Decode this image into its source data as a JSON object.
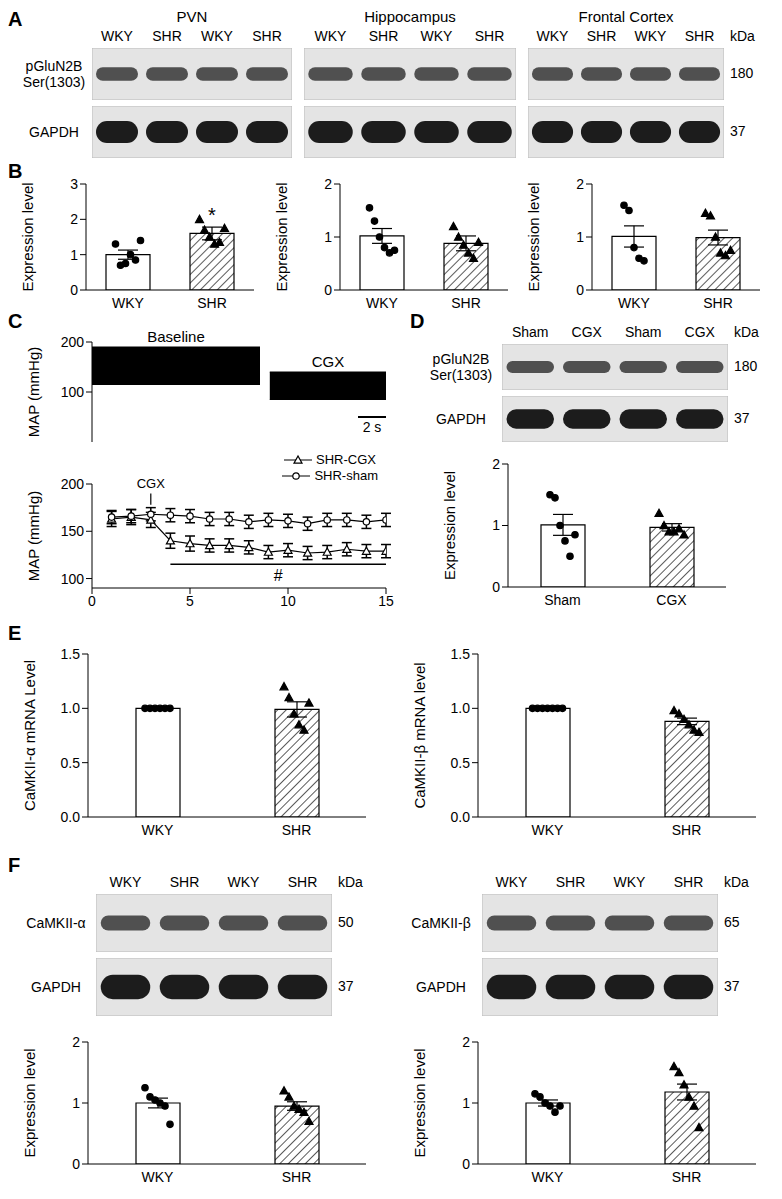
{
  "panel_labels": [
    "A",
    "B",
    "C",
    "D",
    "E",
    "F"
  ],
  "blot_groups": [
    {
      "row_labels": [
        [
          "pGluN2B",
          "Ser(1303)"
        ],
        [
          "GAPDH"
        ]
      ],
      "kda_header": "kDa",
      "kda": [
        180,
        37
      ],
      "blots": [
        {
          "title": "PVN",
          "lanes": [
            "WKY",
            "SHR",
            "WKY",
            "SHR"
          ]
        },
        {
          "title": "Hippocampus",
          "lanes": [
            "WKY",
            "SHR",
            "WKY",
            "SHR"
          ]
        },
        {
          "title": "Frontal Cortex",
          "lanes": [
            "WKY",
            "SHR",
            "WKY",
            "SHR"
          ]
        }
      ]
    },
    {
      "row_labels": [
        [
          "pGluN2B",
          "Ser(1303)"
        ],
        [
          "GAPDH"
        ]
      ],
      "kda_header": "kDa",
      "kda": [
        180,
        37
      ],
      "blots": [
        {
          "lanes": [
            "Sham",
            "CGX",
            "Sham",
            "CGX"
          ]
        }
      ]
    },
    {
      "row_labels": [
        [
          "CaMKII-α"
        ],
        [
          "GAPDH"
        ]
      ],
      "kda_header": "kDa",
      "kda": [
        50,
        37
      ],
      "blots": [
        {
          "lanes": [
            "WKY",
            "SHR",
            "WKY",
            "SHR"
          ]
        }
      ]
    },
    {
      "row_labels": [
        [
          "CaMKII-β"
        ],
        [
          "GAPDH"
        ]
      ],
      "kda_header": "kDa",
      "kda": [
        65,
        37
      ],
      "blots": [
        {
          "lanes": [
            "WKY",
            "SHR",
            "WKY",
            "SHR"
          ]
        }
      ]
    }
  ],
  "chart_data": [
    {
      "type": "bar",
      "y_label": "Expression level",
      "categories": [
        "WKY",
        "SHR"
      ],
      "values": [
        1.0,
        1.6
      ],
      "errors": [
        0.13,
        0.18
      ],
      "colors": [
        "#ffffff",
        "#ffffff"
      ],
      "ylim": [
        0,
        3
      ],
      "yticks": [
        0,
        1,
        2,
        3
      ],
      "points": [
        {
          "category": "WKY",
          "marker": "circle",
          "values": [
            1.3,
            0.7,
            0.75,
            1.0,
            0.85,
            1.4
          ]
        },
        {
          "category": "SHR",
          "marker": "triangle",
          "values": [
            2.0,
            1.7,
            1.5,
            1.3,
            1.35,
            1.75
          ]
        }
      ],
      "annotations": [
        {
          "category": "SHR",
          "text": "*"
        }
      ]
    },
    {
      "type": "bar",
      "y_label": "Expression level",
      "categories": [
        "WKY",
        "SHR"
      ],
      "values": [
        1.02,
        0.88
      ],
      "errors": [
        0.14,
        0.14
      ],
      "colors": [
        "#ffffff",
        "#ffffff"
      ],
      "ylim": [
        0,
        2
      ],
      "yticks": [
        0,
        1,
        2
      ],
      "points": [
        {
          "category": "WKY",
          "marker": "circle",
          "values": [
            1.55,
            1.3,
            1.0,
            0.8,
            0.7,
            0.75
          ]
        },
        {
          "category": "SHR",
          "marker": "triangle",
          "values": [
            1.2,
            1.0,
            0.85,
            0.7,
            0.6,
            0.9
          ]
        }
      ]
    },
    {
      "type": "bar",
      "y_label": "Expression level",
      "categories": [
        "WKY",
        "SHR"
      ],
      "values": [
        1.01,
        0.99
      ],
      "errors": [
        0.2,
        0.14
      ],
      "colors": [
        "#ffffff",
        "#ffffff"
      ],
      "ylim": [
        0,
        2
      ],
      "yticks": [
        0,
        1,
        2
      ],
      "points": [
        {
          "category": "WKY",
          "marker": "circle",
          "values": [
            1.6,
            1.5,
            0.8,
            0.6,
            0.55
          ]
        },
        {
          "category": "SHR",
          "marker": "triangle",
          "values": [
            1.45,
            1.4,
            1.0,
            0.7,
            0.65,
            0.75
          ]
        }
      ]
    },
    {
      "type": "area",
      "y_label": "MAP (mmHg)",
      "xlim": [
        0,
        21
      ],
      "ylim": [
        0,
        200
      ],
      "yticks": [
        0,
        100,
        200
      ],
      "tick_labels": "y",
      "series": [
        {
          "name": "Baseline",
          "x": [
            0,
            12
          ],
          "low": [
            115,
            115
          ],
          "high": [
            190,
            190
          ]
        },
        {
          "name": "CGX",
          "x": [
            12.7,
            21
          ],
          "low": [
            85,
            85
          ],
          "high": [
            140,
            140
          ]
        }
      ],
      "scale_bar": {
        "value": 2,
        "label": "2 s"
      }
    },
    {
      "type": "line",
      "y_label": "MAP (mmHg)",
      "x": [
        1,
        2,
        3,
        4,
        5,
        6,
        7,
        8,
        9,
        10,
        11,
        12,
        13,
        14,
        15
      ],
      "xlim": [
        0,
        15
      ],
      "xticks": [
        0,
        5,
        10,
        15
      ],
      "ylim": [
        90,
        200
      ],
      "yticks": [
        100,
        150,
        200
      ],
      "legend": "top-right",
      "series": [
        {
          "name": "SHR-CGX",
          "marker": "triangle",
          "values": [
            163,
            165,
            162,
            140,
            137,
            135,
            135,
            133,
            128,
            130,
            127,
            128,
            131,
            129,
            129
          ],
          "errors": [
            8,
            8,
            8,
            8,
            8,
            7,
            7,
            7,
            7,
            7,
            7,
            7,
            7,
            7,
            7
          ]
        },
        {
          "name": "SHR-sham",
          "marker": "circle",
          "values": [
            165,
            166,
            168,
            167,
            166,
            163,
            163,
            160,
            162,
            161,
            158,
            162,
            162,
            160,
            162
          ],
          "errors": [
            7,
            7,
            7,
            7,
            7,
            7,
            7,
            7,
            7,
            7,
            7,
            7,
            7,
            7,
            7
          ]
        }
      ],
      "annotations": [
        {
          "text": "CGX",
          "x": 3
        },
        {
          "text": "#",
          "x_range": [
            4,
            15
          ]
        }
      ]
    },
    {
      "type": "bar",
      "y_label": "Expression level",
      "categories": [
        "Sham",
        "CGX"
      ],
      "values": [
        1.01,
        0.97
      ],
      "errors": [
        0.17,
        0.06
      ],
      "colors": [
        "#ffffff",
        "#ffffff"
      ],
      "ylim": [
        0,
        2
      ],
      "yticks": [
        0,
        1,
        2
      ],
      "points": [
        {
          "category": "Sham",
          "marker": "circle",
          "values": [
            1.5,
            1.45,
            1.0,
            0.75,
            0.5,
            0.85
          ]
        },
        {
          "category": "CGX",
          "marker": "triangle",
          "values": [
            1.2,
            1.0,
            0.9,
            0.9,
            0.95,
            0.85
          ]
        }
      ]
    },
    {
      "type": "bar",
      "y_label": "CaMKII-α mRNA Level",
      "categories": [
        "WKY",
        "SHR"
      ],
      "values": [
        1.0,
        0.99
      ],
      "errors": [
        0,
        0.07
      ],
      "colors": [
        "#ffffff",
        "#ffffff"
      ],
      "ylim": [
        0,
        1.5
      ],
      "yticks": [
        {
          "value": 0,
          "label": "0.0"
        },
        {
          "value": 0.5,
          "label": "0.5"
        },
        {
          "value": 1,
          "label": "1.0"
        },
        {
          "value": 1.5,
          "label": "1.5"
        }
      ],
      "points": [
        {
          "category": "WKY",
          "marker": "circle",
          "values": [
            1,
            1,
            1,
            1,
            1,
            1
          ]
        },
        {
          "category": "SHR",
          "marker": "triangle",
          "values": [
            1.2,
            1.1,
            0.95,
            0.85,
            0.8,
            1.05
          ]
        }
      ]
    },
    {
      "type": "bar",
      "y_label": "CaMKII-β mRNA level",
      "categories": [
        "WKY",
        "SHR"
      ],
      "values": [
        1.0,
        0.88
      ],
      "errors": [
        0,
        0.03
      ],
      "colors": [
        "#ffffff",
        "#ffffff"
      ],
      "ylim": [
        0,
        1.5
      ],
      "yticks": [
        {
          "value": 0,
          "label": "0.0"
        },
        {
          "value": 0.5,
          "label": "0.5"
        },
        {
          "value": 1,
          "label": "1.0"
        },
        {
          "value": 1.5,
          "label": "1.5"
        }
      ],
      "points": [
        {
          "category": "WKY",
          "marker": "circle",
          "values": [
            1,
            1,
            1,
            1,
            1,
            1,
            1
          ]
        },
        {
          "category": "SHR",
          "marker": "triangle",
          "values": [
            0.98,
            0.95,
            0.9,
            0.85,
            0.8,
            0.78
          ]
        }
      ]
    },
    {
      "type": "bar",
      "y_label": "Expression level",
      "categories": [
        "WKY",
        "SHR"
      ],
      "values": [
        1.0,
        0.95
      ],
      "errors": [
        0.08,
        0.07
      ],
      "colors": [
        "#ffffff",
        "#ffffff"
      ],
      "ylim": [
        0,
        2
      ],
      "yticks": [
        0,
        1,
        2
      ],
      "points": [
        {
          "category": "WKY",
          "marker": "circle",
          "values": [
            1.25,
            1.1,
            1.05,
            1.0,
            0.95,
            0.65
          ]
        },
        {
          "category": "SHR",
          "marker": "triangle",
          "values": [
            1.2,
            1.1,
            0.95,
            0.9,
            0.85,
            0.7
          ]
        }
      ]
    },
    {
      "type": "bar",
      "y_label": "Expression level",
      "categories": [
        "WKY",
        "SHR"
      ],
      "values": [
        1.0,
        1.18
      ],
      "errors": [
        0.05,
        0.13
      ],
      "colors": [
        "#ffffff",
        "#ffffff"
      ],
      "ylim": [
        0,
        2
      ],
      "yticks": [
        0,
        1,
        2
      ],
      "points": [
        {
          "category": "WKY",
          "marker": "circle",
          "values": [
            1.15,
            1.1,
            1.0,
            0.95,
            0.85,
            0.95
          ]
        },
        {
          "category": "SHR",
          "marker": "triangle",
          "values": [
            1.6,
            1.5,
            1.3,
            1.1,
            0.95,
            0.6
          ]
        }
      ]
    }
  ]
}
